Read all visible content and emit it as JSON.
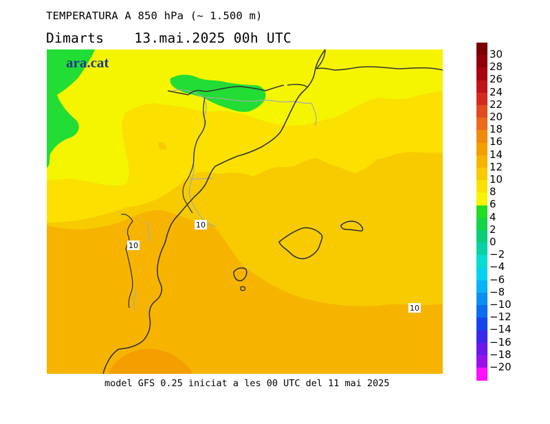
{
  "header": {
    "title": "TEMPERATURA A 850 hPa (~ 1.500 m)",
    "weekday": "Dimarts",
    "datetime": "13.mai.2025 00h UTC"
  },
  "map": {
    "logo_text": "ara.cat",
    "contour_labels": [
      "10",
      "10",
      "10"
    ]
  },
  "footer": {
    "text": "model GFS 0.25 iniciat a les 00 UTC del 11 mai 2025"
  },
  "colors": {
    "map_green": "#22dd33",
    "map_yellow_light": "#f5f500",
    "map_yellow": "#fbe000",
    "map_gold": "#f7cb00",
    "map_orange": "#f6b400",
    "map_orange_dark": "#f59e00",
    "coastline": "#333333",
    "border": "#aaaaaa",
    "logo": "#1f3a8a"
  },
  "legend": {
    "segments": [
      {
        "label": "30",
        "color": "#7a0000"
      },
      {
        "label": "28",
        "color": "#900008"
      },
      {
        "label": "26",
        "color": "#a80510"
      },
      {
        "label": "24",
        "color": "#c0141a"
      },
      {
        "label": "22",
        "color": "#d42a20"
      },
      {
        "label": "20",
        "color": "#e24a22"
      },
      {
        "label": "18",
        "color": "#ec6a1c"
      },
      {
        "label": "16",
        "color": "#f28a10"
      },
      {
        "label": "14",
        "color": "#f59e00"
      },
      {
        "label": "12",
        "color": "#f6b400"
      },
      {
        "label": "10",
        "color": "#f7cb00"
      },
      {
        "label": "8",
        "color": "#fbe000"
      },
      {
        "label": "6",
        "color": "#f5f500"
      },
      {
        "label": "4",
        "color": "#22dd22"
      },
      {
        "label": "2",
        "color": "#14d548"
      },
      {
        "label": "0",
        "color": "#0acd78"
      },
      {
        "label": "−2",
        "color": "#08d2a4"
      },
      {
        "label": "−4",
        "color": "#06dcd0"
      },
      {
        "label": "−6",
        "color": "#05d2f2"
      },
      {
        "label": "−8",
        "color": "#08b2f6"
      },
      {
        "label": "−10",
        "color": "#0a90f2"
      },
      {
        "label": "−12",
        "color": "#0a6cf0"
      },
      {
        "label": "−14",
        "color": "#1446f0"
      },
      {
        "label": "−16",
        "color": "#3a28f0"
      },
      {
        "label": "−18",
        "color": "#6a18ee"
      },
      {
        "label": "−20",
        "color": "#9a10ec"
      },
      {
        "label": "",
        "color": "#ff10ff"
      }
    ]
  }
}
